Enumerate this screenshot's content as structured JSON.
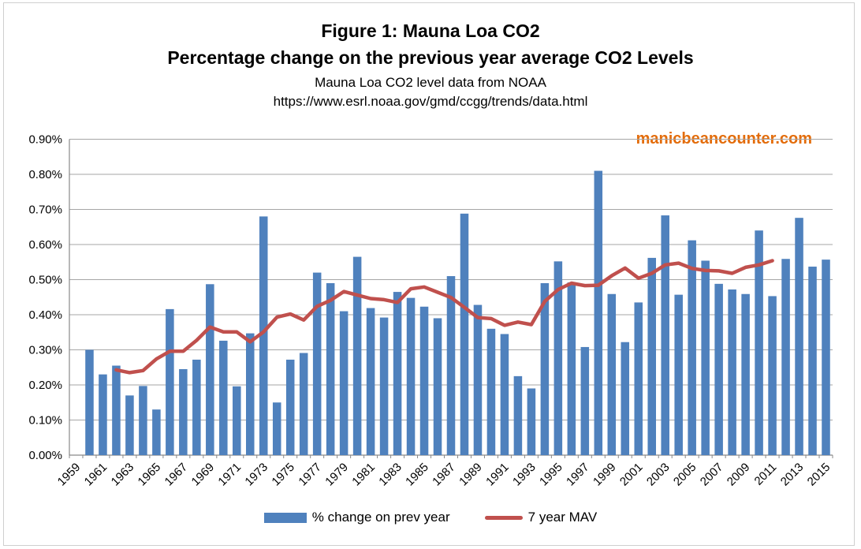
{
  "title": {
    "line1": "Figure 1: Mauna Loa CO2",
    "line2": "Percentage change on the previous year average CO2 Levels",
    "line3": "Mauna Loa CO2 level data from NOAA",
    "line4": "https://www.esrl.noaa.gov/gmd/ccgg/trends/data.html"
  },
  "watermark": {
    "text": "manicbeancounter.com",
    "color": "#E36C0A"
  },
  "legend": {
    "position": "bottom",
    "items": [
      {
        "label": "% change on prev year",
        "type": "bar-swatch",
        "color": "#4F81BD"
      },
      {
        "label": "7 year MAV",
        "type": "line-swatch",
        "color": "#C0504D"
      }
    ]
  },
  "colors": {
    "bar": "#4F81BD",
    "line": "#C0504D",
    "gridline": "#A6A6A6",
    "axis": "#898989",
    "text": "#000000",
    "watermark": "#E36C0A",
    "background": "#FFFFFF"
  },
  "chart_data": {
    "type": "bar",
    "overlay_type": "line",
    "title": "Figure 1: Mauna Loa CO2",
    "subtitle": "Percentage change on the previous year average CO2 Levels",
    "source": "Mauna Loa CO2 level data from NOAA",
    "source_url": "https://www.esrl.noaa.gov/gmd/ccgg/trends/data.html",
    "unit": "percent",
    "grid": true,
    "legend_position": "bottom",
    "ylim": [
      0,
      0.9
    ],
    "y_tick_labels": [
      "0.00%",
      "0.10%",
      "0.20%",
      "0.30%",
      "0.40%",
      "0.50%",
      "0.60%",
      "0.70%",
      "0.80%",
      "0.90%"
    ],
    "x_label_every": 2,
    "x_categories": [
      1959,
      1960,
      1961,
      1962,
      1963,
      1964,
      1965,
      1966,
      1967,
      1968,
      1969,
      1970,
      1971,
      1972,
      1973,
      1974,
      1975,
      1976,
      1977,
      1978,
      1979,
      1980,
      1981,
      1982,
      1983,
      1984,
      1985,
      1986,
      1987,
      1988,
      1989,
      1990,
      1991,
      1992,
      1993,
      1994,
      1995,
      1996,
      1997,
      1998,
      1999,
      2000,
      2001,
      2002,
      2003,
      2004,
      2005,
      2006,
      2007,
      2008,
      2009,
      2010,
      2011,
      2012,
      2013,
      2014,
      2015
    ],
    "series": [
      {
        "name": "% change on prev year",
        "type": "bar",
        "color": "#4F81BD",
        "values": [
          null,
          0.3,
          0.23,
          0.255,
          0.17,
          0.197,
          0.13,
          0.416,
          0.245,
          0.272,
          0.487,
          0.326,
          0.196,
          0.347,
          0.68,
          0.15,
          0.272,
          0.291,
          0.52,
          0.49,
          0.41,
          0.565,
          0.419,
          0.392,
          0.465,
          0.448,
          0.423,
          0.39,
          0.51,
          0.688,
          0.428,
          0.36,
          0.345,
          0.225,
          0.19,
          0.49,
          0.552,
          0.492,
          0.308,
          0.81,
          0.459,
          0.322,
          0.435,
          0.562,
          0.683,
          0.457,
          0.612,
          0.554,
          0.488,
          0.472,
          0.459,
          0.64,
          0.453,
          0.559,
          0.676,
          0.537,
          0.557
        ]
      },
      {
        "name": "7 year MAV",
        "type": "line",
        "color": "#C0504D",
        "start_year": 1962,
        "end_year": 2011,
        "values": [
          0.243,
          0.235,
          0.241,
          0.274,
          0.296,
          0.296,
          0.327,
          0.365,
          0.351,
          0.351,
          0.323,
          0.351,
          0.393,
          0.402,
          0.385,
          0.424,
          0.441,
          0.466,
          0.456,
          0.446,
          0.443,
          0.435,
          0.474,
          0.479,
          0.464,
          0.449,
          0.421,
          0.392,
          0.389,
          0.37,
          0.379,
          0.372,
          0.438,
          0.472,
          0.49,
          0.483,
          0.484,
          0.511,
          0.533,
          0.504,
          0.518,
          0.542,
          0.547,
          0.532,
          0.526,
          0.525,
          0.518,
          0.535,
          0.542,
          0.554
        ]
      }
    ]
  }
}
